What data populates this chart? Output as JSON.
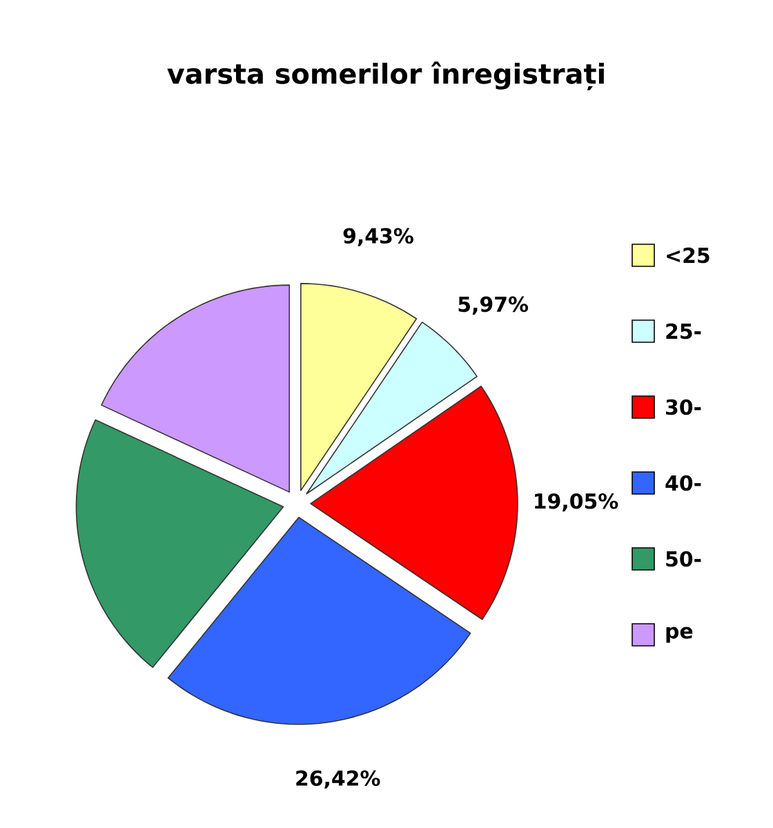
{
  "chart_data": {
    "type": "pie",
    "title": "varsta somerilor înregistrați",
    "categories": [
      "<25",
      "25-",
      "30-",
      "40-",
      "50-",
      "pe"
    ],
    "values": [
      9.43,
      5.97,
      19.05,
      26.42,
      21.03,
      18.1
    ],
    "value_labels": [
      "9,43%",
      "5,97%",
      "19,05%",
      "26,42%",
      null,
      null
    ],
    "colors": [
      "#ffff99",
      "#ccffff",
      "#ff0000",
      "#3366ff",
      "#339966",
      "#cc99ff"
    ],
    "legend": "right"
  }
}
